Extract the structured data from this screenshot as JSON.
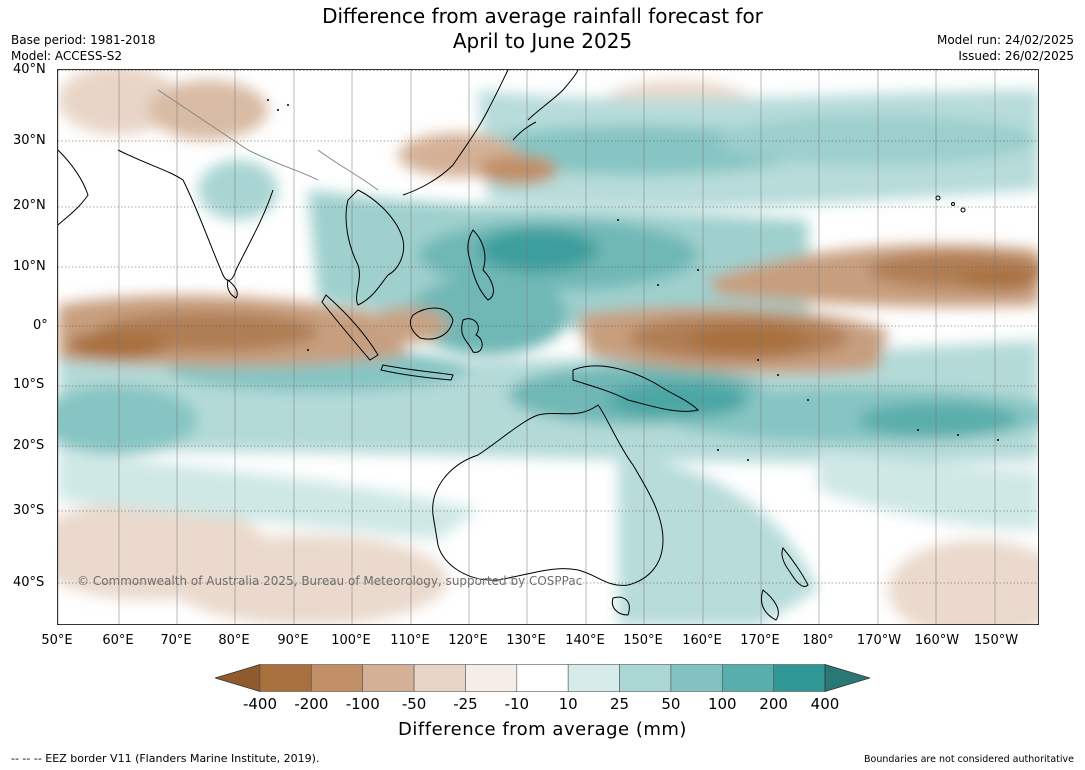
{
  "title_line1": "Difference from average rainfall forecast for",
  "title_line2": "April to June 2025",
  "base_period": "Base period: 1981-2018",
  "model": "Model: ACCESS-S2",
  "model_run": "Model run: 24/02/2025",
  "issued": "Issued: 26/02/2025",
  "lat_labels": [
    "40°N",
    "30°N",
    "20°N",
    "10°N",
    "0°",
    "10°S",
    "20°S",
    "30°S",
    "40°S"
  ],
  "lon_labels": [
    "50°E",
    "60°E",
    "70°E",
    "80°E",
    "90°E",
    "100°E",
    "110°E",
    "120°E",
    "130°E",
    "140°E",
    "150°E",
    "160°E",
    "170°E",
    "180°",
    "170°W",
    "160°W",
    "150°W"
  ],
  "copyright": "© Commonwealth of Australia 2025, Bureau of Meteorology, supported by COSPPac",
  "colorbar": {
    "labels": [
      "-400",
      "-200",
      "-100",
      "-50",
      "-25",
      "-10",
      "10",
      "25",
      "50",
      "100",
      "200",
      "400"
    ],
    "colors": [
      "#8f5a2d",
      "#a8703c",
      "#c08f66",
      "#d4b196",
      "#e8d5c7",
      "#f5ede8",
      "#ffffff",
      "#d6ecea",
      "#aad6d4",
      "#82c2c0",
      "#58aeac",
      "#2f9896",
      "#2a7876"
    ],
    "title": "Difference from average (mm)"
  },
  "footer_left": "--  --  -- EEZ border V11 (Flanders Marine Institute, 2019).",
  "footer_right": "Boundaries are not considered authoritative"
}
